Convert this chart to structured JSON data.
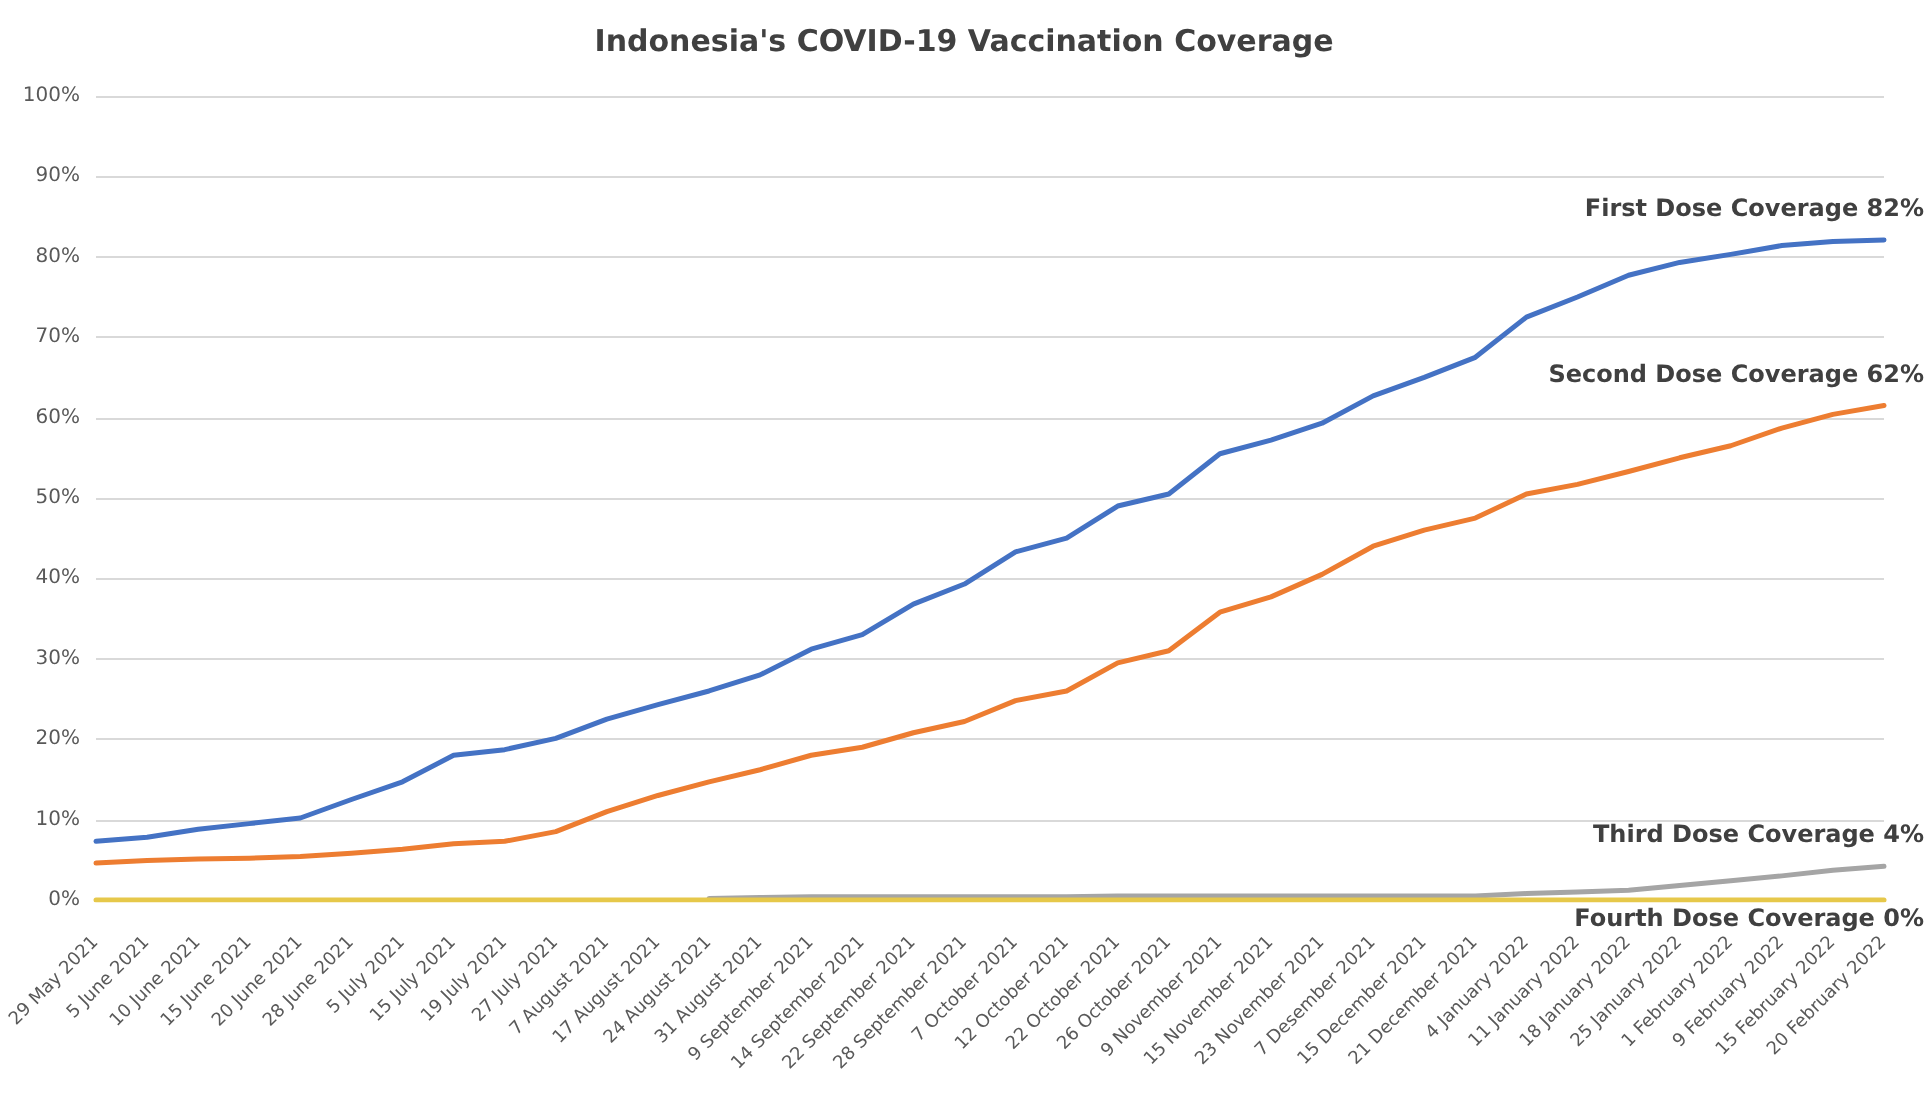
{
  "chart_data": {
    "type": "line",
    "title": "Indonesia's COVID-19 Vaccination Coverage",
    "categories": [
      "29 May 2021",
      "5 June 2021",
      "10 June 2021",
      "15 June 2021",
      "20 June 2021",
      "28 June 2021",
      "5 July 2021",
      "15 July 2021",
      "19 July 2021",
      "27 July 2021",
      "7 August 2021",
      "17 August 2021",
      "24 August 2021",
      "31 August 2021",
      "9 September 2021",
      "14 September 2021",
      "22 September 2021",
      "28 September 2021",
      "7 October 2021",
      "12 October 2021",
      "22 October 2021",
      "26 October 2021",
      "9 November 2021",
      "15 November 2021",
      "23 November 2021",
      "7 Desember 2021",
      "15 December 2021",
      "21 December 2021",
      "4 January 2022",
      "11 January 2022",
      "18 January 2022",
      "25 January 2022",
      "1 February 2022",
      "9 February 2022",
      "15 February 2022",
      "20 February 2022"
    ],
    "series": [
      {
        "color": "#4472c4",
        "values": [
          7.3,
          7.8,
          8.8,
          9.5,
          10.2,
          12.5,
          14.7,
          18,
          18.7,
          20.1,
          22.5,
          24.3,
          26,
          28,
          31.2,
          33,
          36.8,
          39.3,
          43.3,
          45,
          49,
          50.5,
          55.5,
          57.2,
          59.3,
          62.7,
          65,
          67.5,
          72.5,
          75,
          77.7,
          79.3,
          80.3,
          81.4,
          81.9,
          82.1
        ]
      },
      {
        "color": "#ed7d31",
        "values": [
          4.6,
          4.9,
          5.1,
          5.2,
          5.4,
          5.8,
          6.3,
          7,
          7.3,
          8.5,
          11,
          13,
          14.7,
          16.2,
          18,
          19,
          20.8,
          22.2,
          24.8,
          26,
          29.5,
          31,
          35.8,
          37.7,
          40.5,
          44,
          46,
          47.5,
          50.5,
          51.7,
          53.3,
          55,
          56.5,
          58.7,
          60.4,
          61.5
        ]
      },
      {
        "color": "#a5a5a5",
        "values": [
          null,
          null,
          null,
          null,
          null,
          null,
          null,
          null,
          null,
          null,
          null,
          null,
          0.2,
          0.3,
          0.4,
          0.4,
          0.4,
          0.4,
          0.4,
          0.4,
          0.5,
          0.5,
          0.5,
          0.5,
          0.5,
          0.5,
          0.5,
          0.5,
          0.8,
          1,
          1.2,
          1.8,
          2.4,
          3,
          3.7,
          4.2
        ]
      },
      {
        "color": "#e6c84a",
        "values": [
          0,
          0,
          0,
          0,
          0,
          0,
          0,
          0,
          0,
          0,
          0,
          0,
          0,
          0,
          0,
          0,
          0,
          0,
          0,
          0,
          0,
          0,
          0,
          0,
          0,
          0,
          0,
          0,
          0,
          0,
          0,
          0,
          0,
          0,
          0,
          0
        ]
      }
    ],
    "annotations": [
      {
        "text": "First Dose Coverage 82%",
        "x": "20 February 2022",
        "y": 82.1
      },
      {
        "text": "Second Dose Coverage 62%",
        "x": "20 February 2022",
        "y": 61.5
      },
      {
        "text": "Third Dose Coverage 4%",
        "x": "20 February 2022",
        "y": 4.2
      },
      {
        "text": "Fourth Dose Coverage 0%",
        "x": "20 February 2022",
        "y": 0
      }
    ],
    "ylim": [
      0,
      100
    ],
    "yticks": [
      {
        "value": 0,
        "label": "0%"
      },
      {
        "value": 10,
        "label": "10%"
      },
      {
        "value": 20,
        "label": "20%"
      },
      {
        "value": 30,
        "label": "30%"
      },
      {
        "value": 40,
        "label": "40%"
      },
      {
        "value": 50,
        "label": "50%"
      },
      {
        "value": 60,
        "label": "60%"
      },
      {
        "value": 70,
        "label": "70%"
      },
      {
        "value": 80,
        "label": "80%"
      },
      {
        "value": 90,
        "label": "90%"
      },
      {
        "value": 100,
        "label": "100%"
      }
    ],
    "grid": "y",
    "marker": "none",
    "line_style": "solid"
  }
}
